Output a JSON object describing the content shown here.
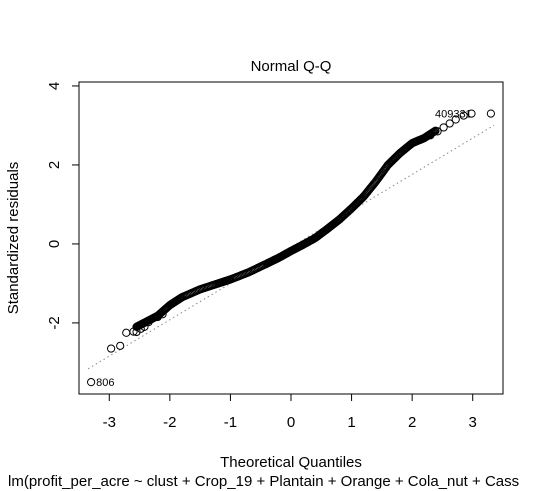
{
  "chart_data": {
    "type": "scatter",
    "title": "Normal Q-Q",
    "xlabel": "Theoretical Quantiles",
    "ylabel": "Standardized residuals",
    "subtitle": "lm(profit_per_acre ~ clust + Crop_19 + Plantain + Orange + Cola_nut + Cass",
    "xlim": [
      -3.5,
      3.5
    ],
    "ylim": [
      -3.8,
      4.1
    ],
    "xticks": [
      -3,
      -2,
      -1,
      0,
      1,
      2,
      3
    ],
    "yticks": [
      -2,
      0,
      2,
      4
    ],
    "reference_line": {
      "slope": 0.92,
      "intercept": -0.08,
      "style": "dotted",
      "color": "#888888"
    },
    "quantile_curve": [
      [
        -2.55,
        -2.1
      ],
      [
        -2.4,
        -1.98
      ],
      [
        -2.2,
        -1.82
      ],
      [
        -2.0,
        -1.55
      ],
      [
        -1.8,
        -1.35
      ],
      [
        -1.5,
        -1.15
      ],
      [
        -1.2,
        -1.0
      ],
      [
        -1.0,
        -0.9
      ],
      [
        -0.7,
        -0.72
      ],
      [
        -0.4,
        -0.5
      ],
      [
        -0.2,
        -0.35
      ],
      [
        0.0,
        -0.18
      ],
      [
        0.2,
        -0.02
      ],
      [
        0.4,
        0.15
      ],
      [
        0.6,
        0.38
      ],
      [
        0.8,
        0.62
      ],
      [
        1.0,
        0.9
      ],
      [
        1.2,
        1.2
      ],
      [
        1.4,
        1.58
      ],
      [
        1.6,
        2.0
      ],
      [
        1.8,
        2.3
      ],
      [
        2.0,
        2.55
      ],
      [
        2.2,
        2.68
      ],
      [
        2.4,
        2.88
      ]
    ],
    "points": [
      {
        "x": -3.3,
        "y": -3.5,
        "label": "806"
      },
      {
        "x": -2.97,
        "y": -2.65
      },
      {
        "x": -2.82,
        "y": -2.58
      },
      {
        "x": -2.72,
        "y": -2.25
      },
      {
        "x": -2.6,
        "y": -2.22
      },
      {
        "x": -2.55,
        "y": -2.23
      },
      {
        "x": -2.48,
        "y": -2.15
      },
      {
        "x": -2.42,
        "y": -2.1
      },
      {
        "x": -2.35,
        "y": -1.98
      },
      {
        "x": -2.2,
        "y": -1.85
      },
      {
        "x": -2.12,
        "y": -1.78
      },
      {
        "x": 2.3,
        "y": 2.75
      },
      {
        "x": 2.42,
        "y": 2.85
      },
      {
        "x": 2.52,
        "y": 2.95
      },
      {
        "x": 2.62,
        "y": 3.05
      },
      {
        "x": 2.72,
        "y": 3.15
      },
      {
        "x": 2.85,
        "y": 3.25
      },
      {
        "x": 2.98,
        "y": 3.3
      },
      {
        "x": 3.3,
        "y": 3.3
      }
    ],
    "point_labels": {
      "top_right": "409331"
    }
  }
}
